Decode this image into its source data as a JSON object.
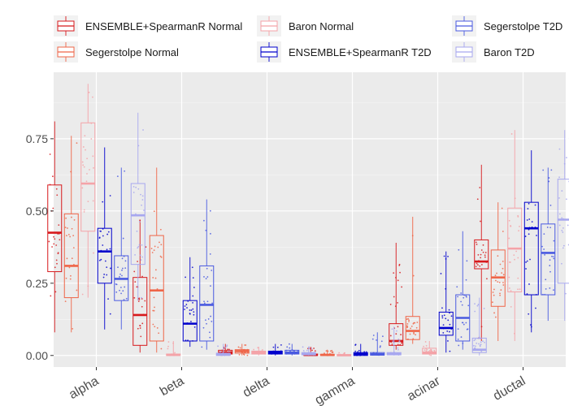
{
  "chart_data": {
    "type": "boxplot",
    "title": "",
    "xlabel": "",
    "ylabel": "",
    "ylim": [
      -0.04,
      0.98
    ],
    "yticks": [
      0.0,
      0.25,
      0.5,
      0.75
    ],
    "ytick_labels": [
      "0.00",
      "0.25",
      "0.50",
      "0.75"
    ],
    "grid": true,
    "legend_position": "top",
    "categories": [
      "alpha",
      "beta",
      "delta",
      "gamma",
      "acinar",
      "ductal"
    ],
    "series": [
      {
        "name": "ENSEMBLE+SpearmanR Normal",
        "color": "#d7191c",
        "boxes": [
          {
            "min": 0.08,
            "q1": 0.29,
            "median": 0.425,
            "q3": 0.59,
            "max": 0.81
          },
          {
            "min": 0.01,
            "q1": 0.035,
            "median": 0.14,
            "q3": 0.27,
            "max": 0.47
          },
          {
            "min": 0.0,
            "q1": 0.005,
            "median": 0.01,
            "q3": 0.018,
            "max": 0.04
          },
          {
            "min": 0.0,
            "q1": 0.0,
            "median": 0.002,
            "q3": 0.005,
            "max": 0.03
          },
          {
            "min": 0.02,
            "q1": 0.035,
            "median": 0.05,
            "q3": 0.11,
            "max": 0.39
          },
          {
            "min": 0.05,
            "q1": 0.3,
            "median": 0.325,
            "q3": 0.4,
            "max": 0.66
          }
        ]
      },
      {
        "name": "Segerstolpe Normal",
        "color": "#ef6548",
        "boxes": [
          {
            "min": 0.08,
            "q1": 0.2,
            "median": 0.31,
            "q3": 0.49,
            "max": 0.76
          },
          {
            "min": 0.01,
            "q1": 0.05,
            "median": 0.225,
            "q3": 0.415,
            "max": 0.65
          },
          {
            "min": 0.0,
            "q1": 0.008,
            "median": 0.015,
            "q3": 0.02,
            "max": 0.04
          },
          {
            "min": 0.0,
            "q1": 0.0,
            "median": 0.002,
            "q3": 0.004,
            "max": 0.02
          },
          {
            "min": 0.04,
            "q1": 0.055,
            "median": 0.085,
            "q3": 0.135,
            "max": 0.48
          },
          {
            "min": 0.05,
            "q1": 0.17,
            "median": 0.27,
            "q3": 0.365,
            "max": 0.53
          }
        ]
      },
      {
        "name": "Baron Normal",
        "color": "#f4a3a8",
        "boxes": [
          {
            "min": 0.2,
            "q1": 0.43,
            "median": 0.595,
            "q3": 0.805,
            "max": 0.94
          },
          {
            "min": 0.0,
            "q1": 0.0,
            "median": 0.002,
            "q3": 0.005,
            "max": 0.05
          },
          {
            "min": 0.0,
            "q1": 0.005,
            "median": 0.01,
            "q3": 0.015,
            "max": 0.03
          },
          {
            "min": 0.0,
            "q1": 0.0,
            "median": 0.001,
            "q3": 0.003,
            "max": 0.01
          },
          {
            "min": 0.0,
            "q1": 0.005,
            "median": 0.01,
            "q3": 0.025,
            "max": 0.05
          },
          {
            "min": 0.05,
            "q1": 0.22,
            "median": 0.37,
            "q3": 0.51,
            "max": 0.78
          }
        ]
      },
      {
        "name": "ENSEMBLE+SpearmanR T2D",
        "color": "#0000cc",
        "boxes": [
          {
            "min": 0.09,
            "q1": 0.25,
            "median": 0.36,
            "q3": 0.44,
            "max": 0.72
          },
          {
            "min": 0.03,
            "q1": 0.05,
            "median": 0.11,
            "q3": 0.19,
            "max": 0.34
          },
          {
            "min": 0.0,
            "q1": 0.005,
            "median": 0.01,
            "q3": 0.015,
            "max": 0.04
          },
          {
            "min": 0.0,
            "q1": 0.0,
            "median": 0.005,
            "q3": 0.01,
            "max": 0.04
          },
          {
            "min": 0.01,
            "q1": 0.07,
            "median": 0.095,
            "q3": 0.15,
            "max": 0.36
          },
          {
            "min": 0.08,
            "q1": 0.21,
            "median": 0.44,
            "q3": 0.53,
            "max": 0.71
          }
        ]
      },
      {
        "name": "Segerstolpe T2D",
        "color": "#4a5ae0",
        "boxes": [
          {
            "min": 0.09,
            "q1": 0.19,
            "median": 0.265,
            "q3": 0.345,
            "max": 0.65
          },
          {
            "min": 0.02,
            "q1": 0.05,
            "median": 0.175,
            "q3": 0.31,
            "max": 0.54
          },
          {
            "min": 0.0,
            "q1": 0.005,
            "median": 0.01,
            "q3": 0.018,
            "max": 0.04
          },
          {
            "min": 0.0,
            "q1": 0.001,
            "median": 0.004,
            "q3": 0.01,
            "max": 0.08
          },
          {
            "min": 0.02,
            "q1": 0.05,
            "median": 0.13,
            "q3": 0.21,
            "max": 0.43
          },
          {
            "min": 0.12,
            "q1": 0.21,
            "median": 0.355,
            "q3": 0.455,
            "max": 0.65
          }
        ]
      },
      {
        "name": "Baron T2D",
        "color": "#a7a7ef",
        "boxes": [
          {
            "min": 0.19,
            "q1": 0.315,
            "median": 0.485,
            "q3": 0.595,
            "max": 0.84
          },
          {
            "min": 0.0,
            "q1": 0.0,
            "median": 0.003,
            "q3": 0.008,
            "max": 0.04
          },
          {
            "min": 0.0,
            "q1": 0.002,
            "median": 0.005,
            "q3": 0.01,
            "max": 0.03
          },
          {
            "min": 0.0,
            "q1": 0.002,
            "median": 0.005,
            "q3": 0.01,
            "max": 0.1
          },
          {
            "min": 0.0,
            "q1": 0.01,
            "median": 0.02,
            "q3": 0.06,
            "max": 0.2
          },
          {
            "min": 0.12,
            "q1": 0.25,
            "median": 0.47,
            "q3": 0.61,
            "max": 0.78
          }
        ]
      }
    ]
  }
}
